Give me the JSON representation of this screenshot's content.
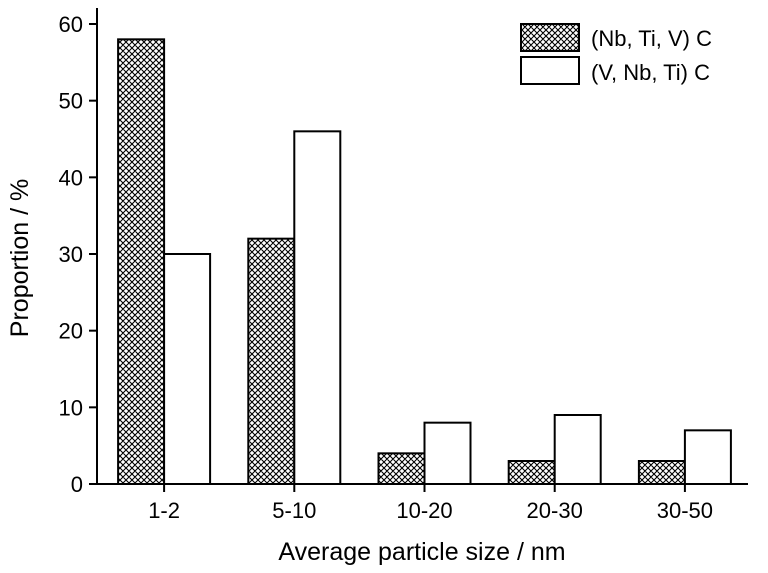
{
  "chart_data": {
    "type": "bar",
    "title": "",
    "xlabel": "Average particle size / nm",
    "ylabel": "Proportion / %",
    "categories": [
      "1-2",
      "5-10",
      "10-20",
      "20-30",
      "30-50"
    ],
    "ylim": [
      0,
      60
    ],
    "yticks": [
      0,
      10,
      20,
      30,
      40,
      50,
      60
    ],
    "grid": false,
    "legend_position": "top-right",
    "series": [
      {
        "name": "(Nb, Ti, V) C",
        "values": [
          58,
          32,
          4,
          3,
          3
        ],
        "fill": "crosshatch",
        "color": "#000000"
      },
      {
        "name": "(V, Nb, Ti) C",
        "values": [
          30,
          46,
          8,
          9,
          7
        ],
        "fill": "white",
        "color": "#ffffff"
      }
    ]
  }
}
